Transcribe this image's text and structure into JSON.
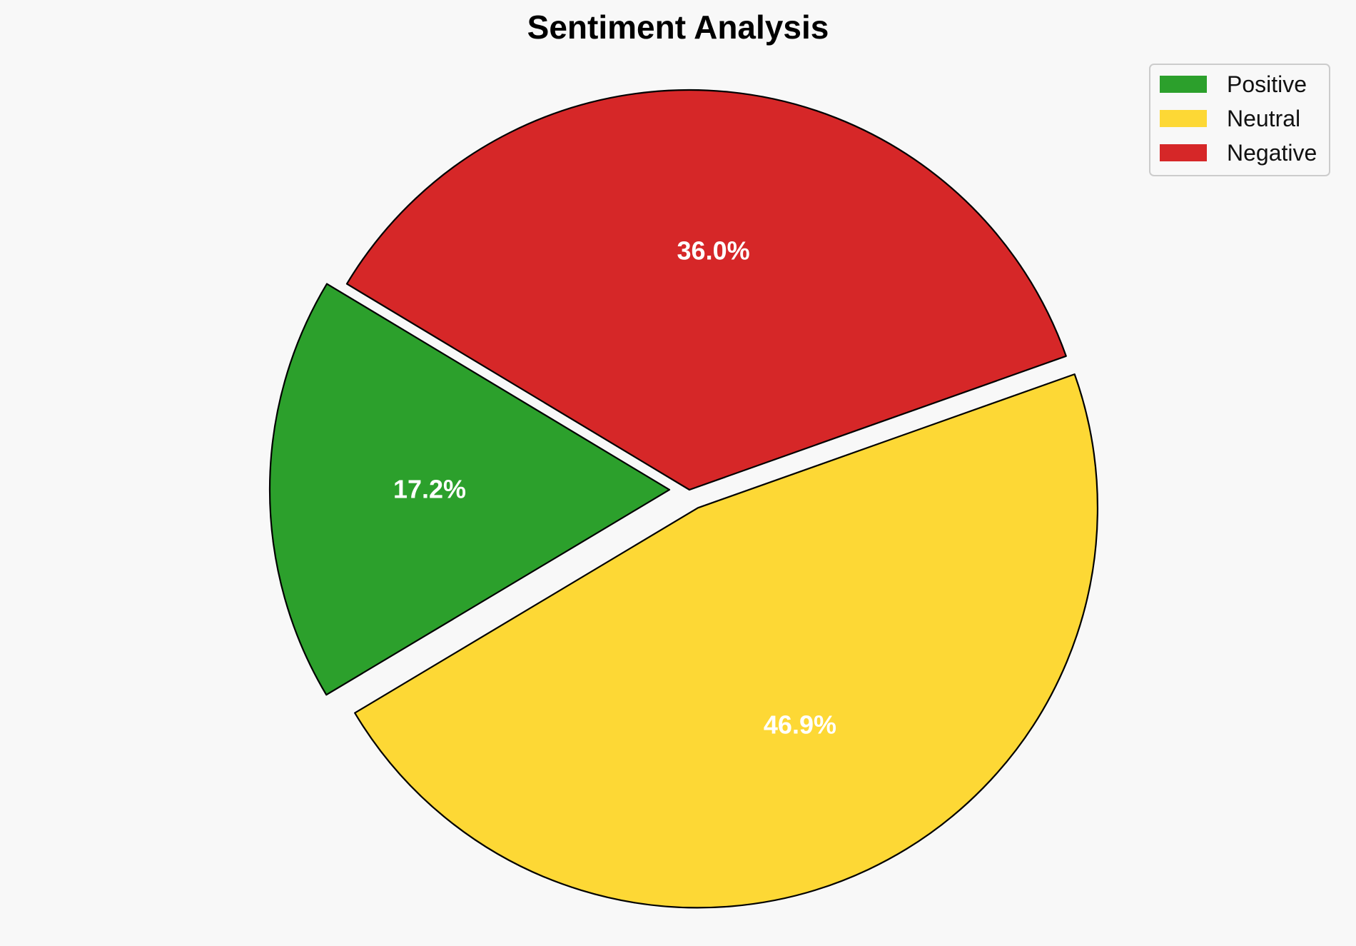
{
  "chart_data": {
    "type": "pie",
    "title": "Sentiment Analysis",
    "categories": [
      "Positive",
      "Neutral",
      "Negative"
    ],
    "values": [
      17.2,
      46.9,
      36.0
    ],
    "labels": [
      "17.2%",
      "46.9%",
      "36.0%"
    ],
    "colors": [
      "#2ca02c",
      "#fdd835",
      "#d62728"
    ],
    "exploded": [
      true,
      true,
      false
    ],
    "legend": {
      "placement": "top-right",
      "entries": [
        "Positive",
        "Neutral",
        "Negative"
      ]
    }
  }
}
